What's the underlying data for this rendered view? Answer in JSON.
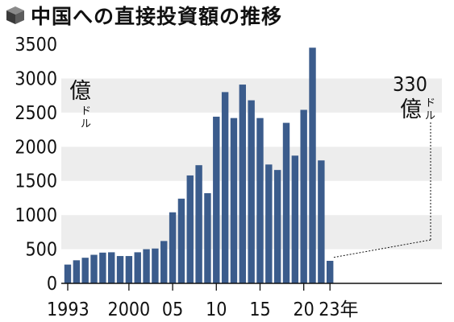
{
  "title": "中国への直接投資額の推移",
  "colors": {
    "bar": "#3b5c8c",
    "band_light": "#ffffff",
    "band_dark": "#ededed",
    "axis": "#111111"
  },
  "chart_data": {
    "type": "bar",
    "title": "中国への直接投資額の推移",
    "unit": {
      "main": "億",
      "sub": "ドル"
    },
    "ylim": [
      0,
      3500
    ],
    "yticks": [
      0,
      500,
      1000,
      1500,
      2000,
      2500,
      3000,
      3500
    ],
    "grid": "alternating horizontal bands",
    "categories": [
      "1993",
      "1994",
      "1995",
      "1996",
      "1997",
      "1998",
      "1999",
      "2000",
      "2001",
      "2002",
      "2003",
      "2004",
      "2005",
      "2006",
      "2007",
      "2008",
      "2009",
      "2010",
      "2011",
      "2012",
      "2013",
      "2014",
      "2015",
      "2016",
      "2017",
      "2018",
      "2019",
      "2020",
      "2021",
      "2022",
      "2023"
    ],
    "values": [
      275,
      338,
      375,
      418,
      450,
      455,
      400,
      400,
      455,
      500,
      510,
      620,
      1040,
      1240,
      1580,
      1730,
      1320,
      2440,
      2800,
      2420,
      2910,
      2680,
      2420,
      1740,
      1660,
      2350,
      1870,
      2540,
      3450,
      1800,
      330
    ],
    "x_tick_labels": [
      {
        "category": "1993",
        "label": "1993"
      },
      {
        "category": "2000",
        "label": "2000"
      },
      {
        "category": "2005",
        "label": "05"
      },
      {
        "category": "2010",
        "label": "10"
      },
      {
        "category": "2015",
        "label": "15"
      },
      {
        "category": "2020",
        "label": "20"
      },
      {
        "category": "2023",
        "label": "23年"
      }
    ],
    "annotation": {
      "category": "2023",
      "value": "330",
      "unit_main": "億",
      "unit_sub": "ドル"
    }
  }
}
